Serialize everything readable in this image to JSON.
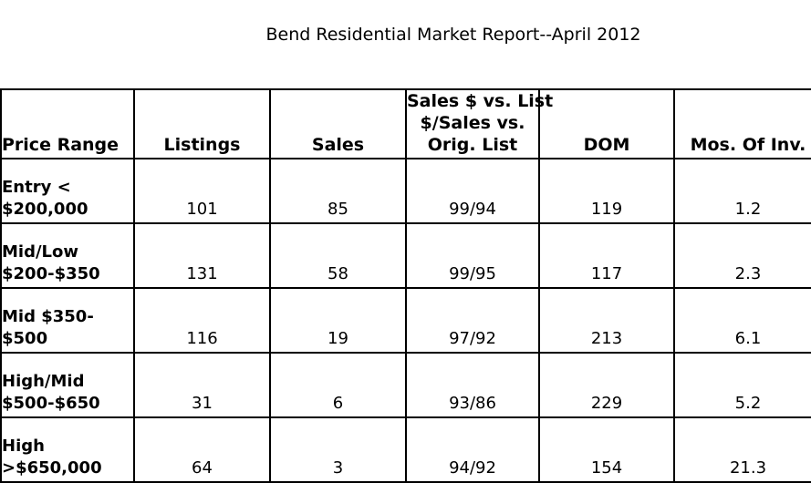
{
  "title": "Bend Residential Market Report--April 2012",
  "headers": {
    "price_range": "Price Range",
    "listings": "Listings",
    "sales": "Sales",
    "ratio_line1": "Sales $ vs. List",
    "ratio_line2": "$/Sales vs.",
    "ratio_line3": "Orig. List",
    "dom": "DOM",
    "mos_of_inv": "Mos. Of Inv."
  },
  "rows": [
    {
      "range_line1": "Entry <",
      "range_line2": "$200,000",
      "listings": "101",
      "sales": "85",
      "ratio": "99/94",
      "dom": "119",
      "mos": "1.2"
    },
    {
      "range_line1": "Mid/Low",
      "range_line2": "$200-$350",
      "listings": "131",
      "sales": "58",
      "ratio": "99/95",
      "dom": "117",
      "mos": "2.3"
    },
    {
      "range_line1": "Mid $350-",
      "range_line2": "$500",
      "listings": "116",
      "sales": "19",
      "ratio": "97/92",
      "dom": "213",
      "mos": "6.1"
    },
    {
      "range_line1": "High/Mid",
      "range_line2": "$500-$650",
      "listings": "31",
      "sales": "6",
      "ratio": "93/86",
      "dom": "229",
      "mos": "5.2"
    },
    {
      "range_line1": "High",
      "range_line2": ">$650,000",
      "listings": "64",
      "sales": "3",
      "ratio": "94/92",
      "dom": "154",
      "mos": "21.3"
    }
  ]
}
